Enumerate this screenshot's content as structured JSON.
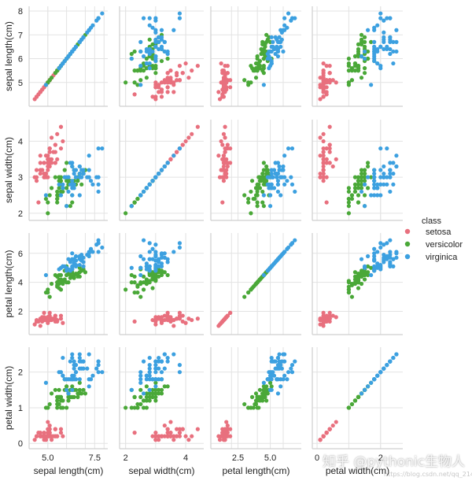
{
  "chart_data": {
    "type": "scatter",
    "variables": [
      {
        "key": "sl",
        "label": "sepal length(cm)",
        "range": [
          4.0,
          8.2
        ],
        "ticks": [
          5,
          6,
          7,
          8
        ],
        "xticks": [
          5.0,
          7.5
        ],
        "xtick_labels": [
          "5.0",
          "7.5"
        ]
      },
      {
        "key": "sw",
        "label": "sepal width(cm)",
        "range": [
          1.8,
          4.6
        ],
        "ticks": [
          2,
          3,
          4
        ],
        "xticks": [
          2,
          4
        ],
        "xtick_labels": [
          "2",
          "4"
        ]
      },
      {
        "key": "pl",
        "label": "petal length(cm)",
        "range": [
          0.4,
          7.4
        ],
        "ticks": [
          2,
          4,
          6
        ],
        "xticks": [
          2.5,
          5.0
        ],
        "xtick_labels": [
          "2.5",
          "5.0"
        ]
      },
      {
        "key": "pw",
        "label": "petal width(cm)",
        "range": [
          -0.15,
          2.7
        ],
        "ticks": [
          0,
          1,
          2
        ],
        "xticks": [
          0,
          2
        ],
        "xtick_labels": [
          "0",
          "2"
        ]
      }
    ],
    "legend": {
      "title": "class",
      "position": "right"
    },
    "series": [
      {
        "name": "setosa",
        "color": "#e8707e",
        "points": [
          [
            5.1,
            3.5,
            1.4,
            0.2
          ],
          [
            4.9,
            3.0,
            1.4,
            0.2
          ],
          [
            4.7,
            3.2,
            1.3,
            0.2
          ],
          [
            4.6,
            3.1,
            1.5,
            0.2
          ],
          [
            5.0,
            3.6,
            1.4,
            0.2
          ],
          [
            5.4,
            3.9,
            1.7,
            0.4
          ],
          [
            4.6,
            3.4,
            1.4,
            0.3
          ],
          [
            5.0,
            3.4,
            1.5,
            0.2
          ],
          [
            4.4,
            2.9,
            1.4,
            0.2
          ],
          [
            4.9,
            3.1,
            1.5,
            0.1
          ],
          [
            5.4,
            3.7,
            1.5,
            0.2
          ],
          [
            4.8,
            3.4,
            1.6,
            0.2
          ],
          [
            4.8,
            3.0,
            1.4,
            0.1
          ],
          [
            4.3,
            3.0,
            1.1,
            0.1
          ],
          [
            5.8,
            4.0,
            1.2,
            0.2
          ],
          [
            5.7,
            4.4,
            1.5,
            0.4
          ],
          [
            5.4,
            3.9,
            1.3,
            0.4
          ],
          [
            5.1,
            3.5,
            1.4,
            0.3
          ],
          [
            5.7,
            3.8,
            1.7,
            0.3
          ],
          [
            5.1,
            3.8,
            1.5,
            0.3
          ],
          [
            5.4,
            3.4,
            1.7,
            0.2
          ],
          [
            5.1,
            3.7,
            1.5,
            0.4
          ],
          [
            4.6,
            3.6,
            1.0,
            0.2
          ],
          [
            5.1,
            3.3,
            1.7,
            0.5
          ],
          [
            4.8,
            3.4,
            1.9,
            0.2
          ],
          [
            5.0,
            3.0,
            1.6,
            0.2
          ],
          [
            5.0,
            3.4,
            1.6,
            0.4
          ],
          [
            5.2,
            3.5,
            1.5,
            0.2
          ],
          [
            5.2,
            3.4,
            1.4,
            0.2
          ],
          [
            4.7,
            3.2,
            1.6,
            0.2
          ],
          [
            4.8,
            3.1,
            1.6,
            0.2
          ],
          [
            5.4,
            3.4,
            1.5,
            0.4
          ],
          [
            5.2,
            4.1,
            1.5,
            0.1
          ],
          [
            5.5,
            4.2,
            1.4,
            0.2
          ],
          [
            4.9,
            3.1,
            1.5,
            0.2
          ],
          [
            5.0,
            3.2,
            1.2,
            0.2
          ],
          [
            5.5,
            3.5,
            1.3,
            0.2
          ],
          [
            4.9,
            3.6,
            1.4,
            0.1
          ],
          [
            4.4,
            3.0,
            1.3,
            0.2
          ],
          [
            5.1,
            3.4,
            1.5,
            0.2
          ],
          [
            5.0,
            3.5,
            1.3,
            0.3
          ],
          [
            4.5,
            2.3,
            1.3,
            0.3
          ],
          [
            4.4,
            3.2,
            1.3,
            0.2
          ],
          [
            5.0,
            3.5,
            1.6,
            0.6
          ],
          [
            5.1,
            3.8,
            1.9,
            0.4
          ],
          [
            4.8,
            3.0,
            1.4,
            0.3
          ],
          [
            5.1,
            3.8,
            1.6,
            0.2
          ],
          [
            4.6,
            3.2,
            1.4,
            0.2
          ],
          [
            5.3,
            3.7,
            1.5,
            0.2
          ],
          [
            5.0,
            3.3,
            1.4,
            0.2
          ]
        ]
      },
      {
        "name": "versicolor",
        "color": "#4aa838",
        "points": [
          [
            7.0,
            3.2,
            4.7,
            1.4
          ],
          [
            6.4,
            3.2,
            4.5,
            1.5
          ],
          [
            6.9,
            3.1,
            4.9,
            1.5
          ],
          [
            5.5,
            2.3,
            4.0,
            1.3
          ],
          [
            6.5,
            2.8,
            4.6,
            1.5
          ],
          [
            5.7,
            2.8,
            4.5,
            1.3
          ],
          [
            6.3,
            3.3,
            4.7,
            1.6
          ],
          [
            4.9,
            2.4,
            3.3,
            1.0
          ],
          [
            6.6,
            2.9,
            4.6,
            1.3
          ],
          [
            5.2,
            2.7,
            3.9,
            1.4
          ],
          [
            5.0,
            2.0,
            3.5,
            1.0
          ],
          [
            5.9,
            3.0,
            4.2,
            1.5
          ],
          [
            6.0,
            2.2,
            4.0,
            1.0
          ],
          [
            6.1,
            2.9,
            4.7,
            1.4
          ],
          [
            5.6,
            2.9,
            3.6,
            1.3
          ],
          [
            6.7,
            3.1,
            4.4,
            1.4
          ],
          [
            5.6,
            3.0,
            4.5,
            1.5
          ],
          [
            5.8,
            2.7,
            4.1,
            1.0
          ],
          [
            6.2,
            2.2,
            4.5,
            1.5
          ],
          [
            5.6,
            2.5,
            3.9,
            1.1
          ],
          [
            5.9,
            3.2,
            4.8,
            1.8
          ],
          [
            6.1,
            2.8,
            4.0,
            1.3
          ],
          [
            6.3,
            2.5,
            4.9,
            1.5
          ],
          [
            6.1,
            2.8,
            4.7,
            1.2
          ],
          [
            6.4,
            2.9,
            4.3,
            1.3
          ],
          [
            6.6,
            3.0,
            4.4,
            1.4
          ],
          [
            6.8,
            2.8,
            4.8,
            1.4
          ],
          [
            6.7,
            3.0,
            5.0,
            1.7
          ],
          [
            6.0,
            2.9,
            4.5,
            1.5
          ],
          [
            5.7,
            2.6,
            3.5,
            1.0
          ],
          [
            5.5,
            2.4,
            3.8,
            1.1
          ],
          [
            5.5,
            2.4,
            3.7,
            1.0
          ],
          [
            5.8,
            2.7,
            3.9,
            1.2
          ],
          [
            6.0,
            2.7,
            5.1,
            1.6
          ],
          [
            5.4,
            3.0,
            4.5,
            1.5
          ],
          [
            6.0,
            3.4,
            4.5,
            1.6
          ],
          [
            6.7,
            3.1,
            4.7,
            1.5
          ],
          [
            6.3,
            2.3,
            4.4,
            1.3
          ],
          [
            5.6,
            3.0,
            4.1,
            1.3
          ],
          [
            5.5,
            2.5,
            4.0,
            1.3
          ],
          [
            5.5,
            2.6,
            4.4,
            1.2
          ],
          [
            6.1,
            3.0,
            4.6,
            1.4
          ],
          [
            5.8,
            2.6,
            4.0,
            1.2
          ],
          [
            5.0,
            2.3,
            3.3,
            1.0
          ],
          [
            5.6,
            2.7,
            4.2,
            1.3
          ],
          [
            5.7,
            3.0,
            4.2,
            1.2
          ],
          [
            5.7,
            2.9,
            4.2,
            1.3
          ],
          [
            6.2,
            2.9,
            4.3,
            1.3
          ],
          [
            5.1,
            2.5,
            3.0,
            1.1
          ],
          [
            5.7,
            2.8,
            4.1,
            1.3
          ]
        ]
      },
      {
        "name": "virginica",
        "color": "#3ca0e0",
        "points": [
          [
            6.3,
            3.3,
            6.0,
            2.5
          ],
          [
            5.8,
            2.7,
            5.1,
            1.9
          ],
          [
            7.1,
            3.0,
            5.9,
            2.1
          ],
          [
            6.3,
            2.9,
            5.6,
            1.8
          ],
          [
            6.5,
            3.0,
            5.8,
            2.2
          ],
          [
            7.6,
            3.0,
            6.6,
            2.1
          ],
          [
            4.9,
            2.5,
            4.5,
            1.7
          ],
          [
            7.3,
            2.9,
            6.3,
            1.8
          ],
          [
            6.7,
            2.5,
            5.8,
            1.8
          ],
          [
            7.2,
            3.6,
            6.1,
            2.5
          ],
          [
            6.5,
            3.2,
            5.1,
            2.0
          ],
          [
            6.4,
            2.7,
            5.3,
            1.9
          ],
          [
            6.8,
            3.0,
            5.5,
            2.1
          ],
          [
            5.7,
            2.5,
            5.0,
            2.0
          ],
          [
            5.8,
            2.8,
            5.1,
            2.4
          ],
          [
            6.4,
            3.2,
            5.3,
            2.3
          ],
          [
            6.5,
            3.0,
            5.5,
            1.8
          ],
          [
            7.7,
            3.8,
            6.7,
            2.2
          ],
          [
            7.7,
            2.6,
            6.9,
            2.3
          ],
          [
            6.0,
            2.2,
            5.0,
            1.5
          ],
          [
            6.9,
            3.2,
            5.7,
            2.3
          ],
          [
            5.6,
            2.8,
            4.9,
            2.0
          ],
          [
            7.7,
            2.8,
            6.7,
            2.0
          ],
          [
            6.3,
            2.7,
            4.9,
            1.8
          ],
          [
            6.7,
            3.3,
            5.7,
            2.1
          ],
          [
            7.2,
            3.2,
            6.0,
            1.8
          ],
          [
            6.2,
            2.8,
            4.8,
            1.8
          ],
          [
            6.1,
            3.0,
            4.9,
            1.8
          ],
          [
            6.4,
            2.8,
            5.6,
            2.1
          ],
          [
            7.2,
            3.0,
            5.8,
            1.6
          ],
          [
            7.4,
            2.8,
            6.1,
            1.9
          ],
          [
            7.9,
            3.8,
            6.4,
            2.0
          ],
          [
            6.4,
            2.8,
            5.6,
            2.2
          ],
          [
            6.3,
            2.8,
            5.1,
            1.5
          ],
          [
            6.1,
            2.6,
            5.6,
            1.4
          ],
          [
            7.7,
            3.0,
            6.1,
            2.3
          ],
          [
            6.3,
            3.4,
            5.6,
            2.4
          ],
          [
            6.4,
            3.1,
            5.5,
            1.8
          ],
          [
            6.0,
            3.0,
            4.8,
            1.8
          ],
          [
            6.9,
            3.1,
            5.4,
            2.1
          ],
          [
            6.7,
            3.1,
            5.6,
            2.4
          ],
          [
            6.9,
            3.1,
            5.1,
            2.3
          ],
          [
            5.8,
            2.7,
            5.1,
            1.9
          ],
          [
            6.8,
            3.2,
            5.9,
            2.3
          ],
          [
            6.7,
            3.3,
            5.7,
            2.5
          ],
          [
            6.7,
            3.0,
            5.2,
            2.3
          ],
          [
            6.3,
            2.5,
            5.0,
            1.9
          ],
          [
            6.5,
            3.0,
            5.2,
            2.0
          ],
          [
            6.2,
            3.4,
            5.4,
            2.3
          ],
          [
            5.9,
            3.0,
            5.1,
            1.8
          ]
        ]
      }
    ]
  },
  "watermark": {
    "main": "知乎 @pythonic生物人",
    "sub": "https://blog.csdn.net/qq_21478261"
  }
}
